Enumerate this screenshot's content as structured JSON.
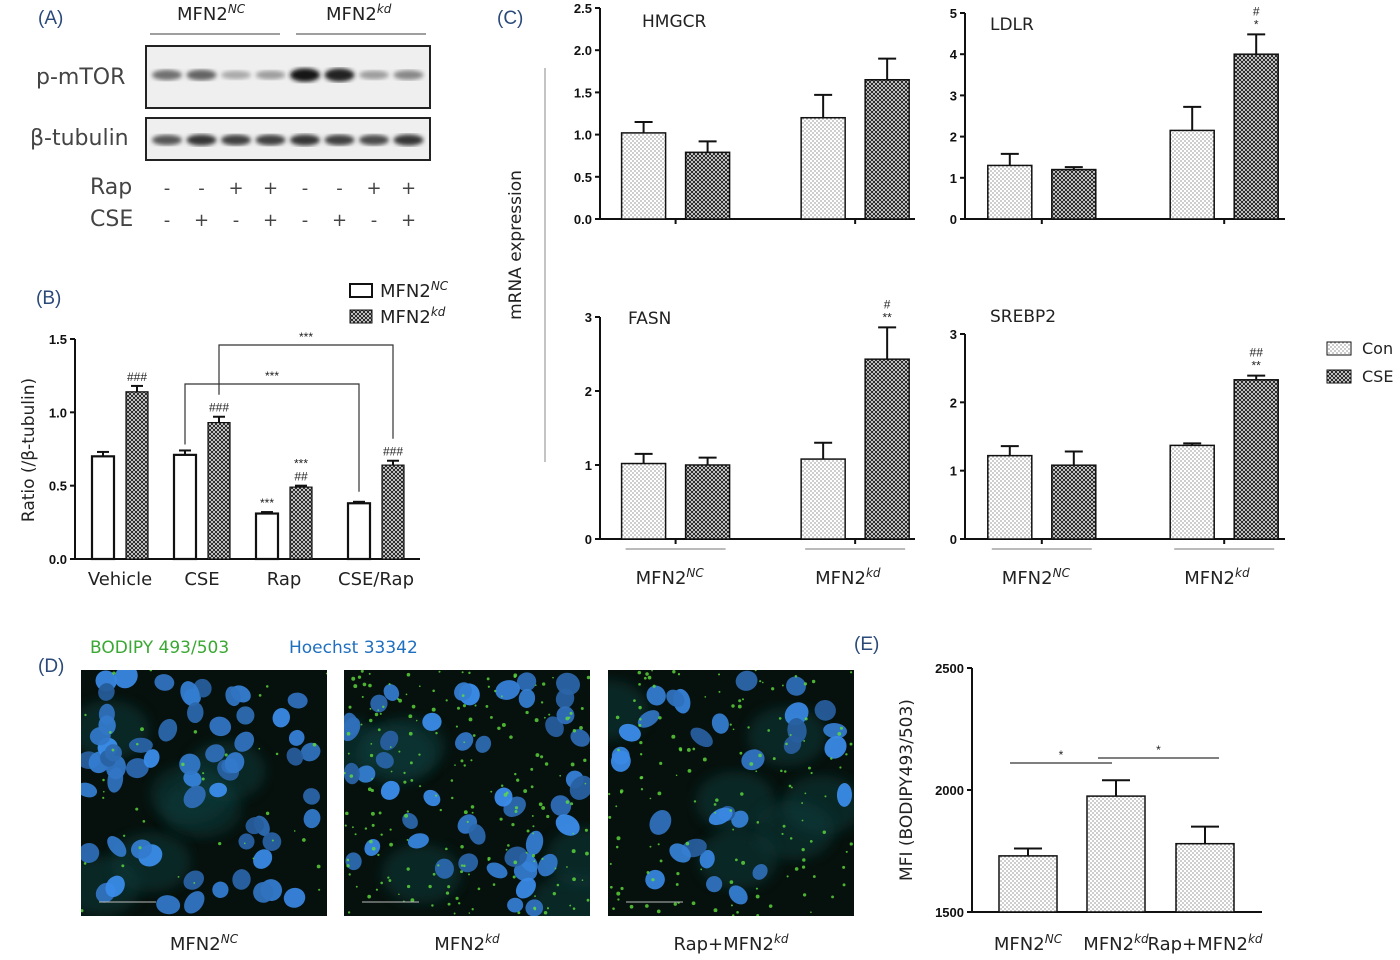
{
  "panels": {
    "A": "(A)",
    "B": "(B)",
    "C": "(C)",
    "D": "(D)",
    "E": "(E)"
  },
  "blot": {
    "group_nc": "MFN2",
    "group_nc_sup": "NC",
    "group_kd": "MFN2",
    "group_kd_sup": "kd",
    "rows": [
      "p-mTOR",
      "β-tubulin"
    ],
    "treatments": [
      {
        "label": "Rap",
        "signs": [
          "-",
          "-",
          "+",
          "+",
          "-",
          "-",
          "+",
          "+"
        ]
      },
      {
        "label": "CSE",
        "signs": [
          "-",
          "+",
          "-",
          "+",
          "-",
          "+",
          "-",
          "+"
        ]
      }
    ],
    "pmtor_band_intensity": [
      0.55,
      0.6,
      0.3,
      0.35,
      0.95,
      0.9,
      0.35,
      0.45
    ],
    "tubulin_band_intensity": [
      0.7,
      0.85,
      0.8,
      0.8,
      0.85,
      0.8,
      0.75,
      0.85
    ]
  },
  "chart_data": [
    {
      "id": "B",
      "type": "bar",
      "ylabel": "Ratio (/β-tubulin)",
      "ylim": [
        0,
        1.5
      ],
      "yticks": [
        "0.0",
        "0.5",
        "1.0",
        "1.5"
      ],
      "categories": [
        "Vehicle",
        "CSE",
        "Rap",
        "CSE/Rap"
      ],
      "series": [
        {
          "name": "MFN2",
          "sup": "NC",
          "values": [
            0.7,
            0.71,
            0.31,
            0.38
          ],
          "errors": [
            0.03,
            0.03,
            0.01,
            0.01
          ],
          "sig": [
            "",
            "",
            "***",
            ""
          ]
        },
        {
          "name": "MFN2",
          "sup": "kd",
          "values": [
            1.14,
            0.93,
            0.49,
            0.64
          ],
          "errors": [
            0.04,
            0.04,
            0.01,
            0.03
          ],
          "sig": [
            "###",
            "###",
            "***\n##",
            "###"
          ]
        }
      ],
      "brackets": [
        {
          "label": "***",
          "from": "CSE (kd)",
          "to": "CSE/Rap (kd)"
        },
        {
          "label": "***",
          "from": "CSE (NC)",
          "to": "CSE/Rap (NC)"
        }
      ]
    },
    {
      "id": "C",
      "type": "bar",
      "ylabel": "mRNA expression",
      "legend": [
        "Con",
        "CSE"
      ],
      "categories_main": [
        "MFN2",
        "MFN2"
      ],
      "categories_sup": [
        "NC",
        "kd"
      ],
      "subplots": [
        {
          "gene": "HMGCR",
          "ylim": [
            0,
            2.5
          ],
          "yticks": [
            "0.0",
            "0.5",
            "1.0",
            "1.5",
            "2.0",
            "2.5"
          ],
          "con": [
            1.02,
            1.2
          ],
          "cse": [
            0.79,
            1.65
          ],
          "con_err": [
            0.13,
            0.27
          ],
          "cse_err": [
            0.13,
            0.25
          ],
          "sig": [
            "",
            "",
            "",
            ""
          ]
        },
        {
          "gene": "LDLR",
          "ylim": [
            0,
            5
          ],
          "yticks": [
            "0",
            "1",
            "2",
            "3",
            "4",
            "5"
          ],
          "con": [
            1.3,
            2.15
          ],
          "cse": [
            1.2,
            4.0
          ],
          "con_err": [
            0.28,
            0.57
          ],
          "cse_err": [
            0.06,
            0.48
          ],
          "sig": [
            "",
            "",
            "",
            "#\n*"
          ]
        },
        {
          "gene": "FASN",
          "ylim": [
            0,
            3
          ],
          "yticks": [
            "0",
            "1",
            "2",
            "3"
          ],
          "con": [
            1.02,
            1.08
          ],
          "cse": [
            1.0,
            2.43
          ],
          "con_err": [
            0.13,
            0.22
          ],
          "cse_err": [
            0.1,
            0.43
          ],
          "sig": [
            "",
            "",
            "",
            "#\n**"
          ]
        },
        {
          "gene": "SREBP2",
          "ylim": [
            0,
            3
          ],
          "yticks": [
            "0",
            "1",
            "2",
            "3"
          ],
          "con": [
            1.22,
            1.37
          ],
          "cse": [
            1.08,
            2.33
          ],
          "con_err": [
            0.14,
            0.03
          ],
          "cse_err": [
            0.2,
            0.06
          ],
          "sig": [
            "",
            "",
            "",
            "##\n**"
          ]
        }
      ]
    },
    {
      "id": "E",
      "type": "bar",
      "ylabel": "MFI (BODIPY493/503)",
      "ylim": [
        1500,
        2500
      ],
      "yticks": [
        "1500",
        "2000",
        "2500"
      ],
      "categories": [
        "MFN2",
        "MFN2",
        "Rap+MFN2"
      ],
      "categories_sup": [
        "NC",
        "kd",
        "kd"
      ],
      "values": [
        1730,
        1975,
        1780
      ],
      "errors": [
        30,
        65,
        70
      ],
      "brackets": [
        {
          "label": "*",
          "from": 0,
          "to": 1
        },
        {
          "label": "*",
          "from": 1,
          "to": 2
        }
      ]
    }
  ],
  "micrographs": {
    "stain1": "BODIPY 493/503",
    "stain2": "Hoechst 33342",
    "captions": [
      {
        "main": "MFN2",
        "sup": "NC"
      },
      {
        "main": "MFN2",
        "sup": "kd"
      },
      {
        "main": "Rap+MFN2",
        "sup": "kd"
      }
    ],
    "lipid_density": [
      0.15,
      0.8,
      0.55
    ]
  }
}
